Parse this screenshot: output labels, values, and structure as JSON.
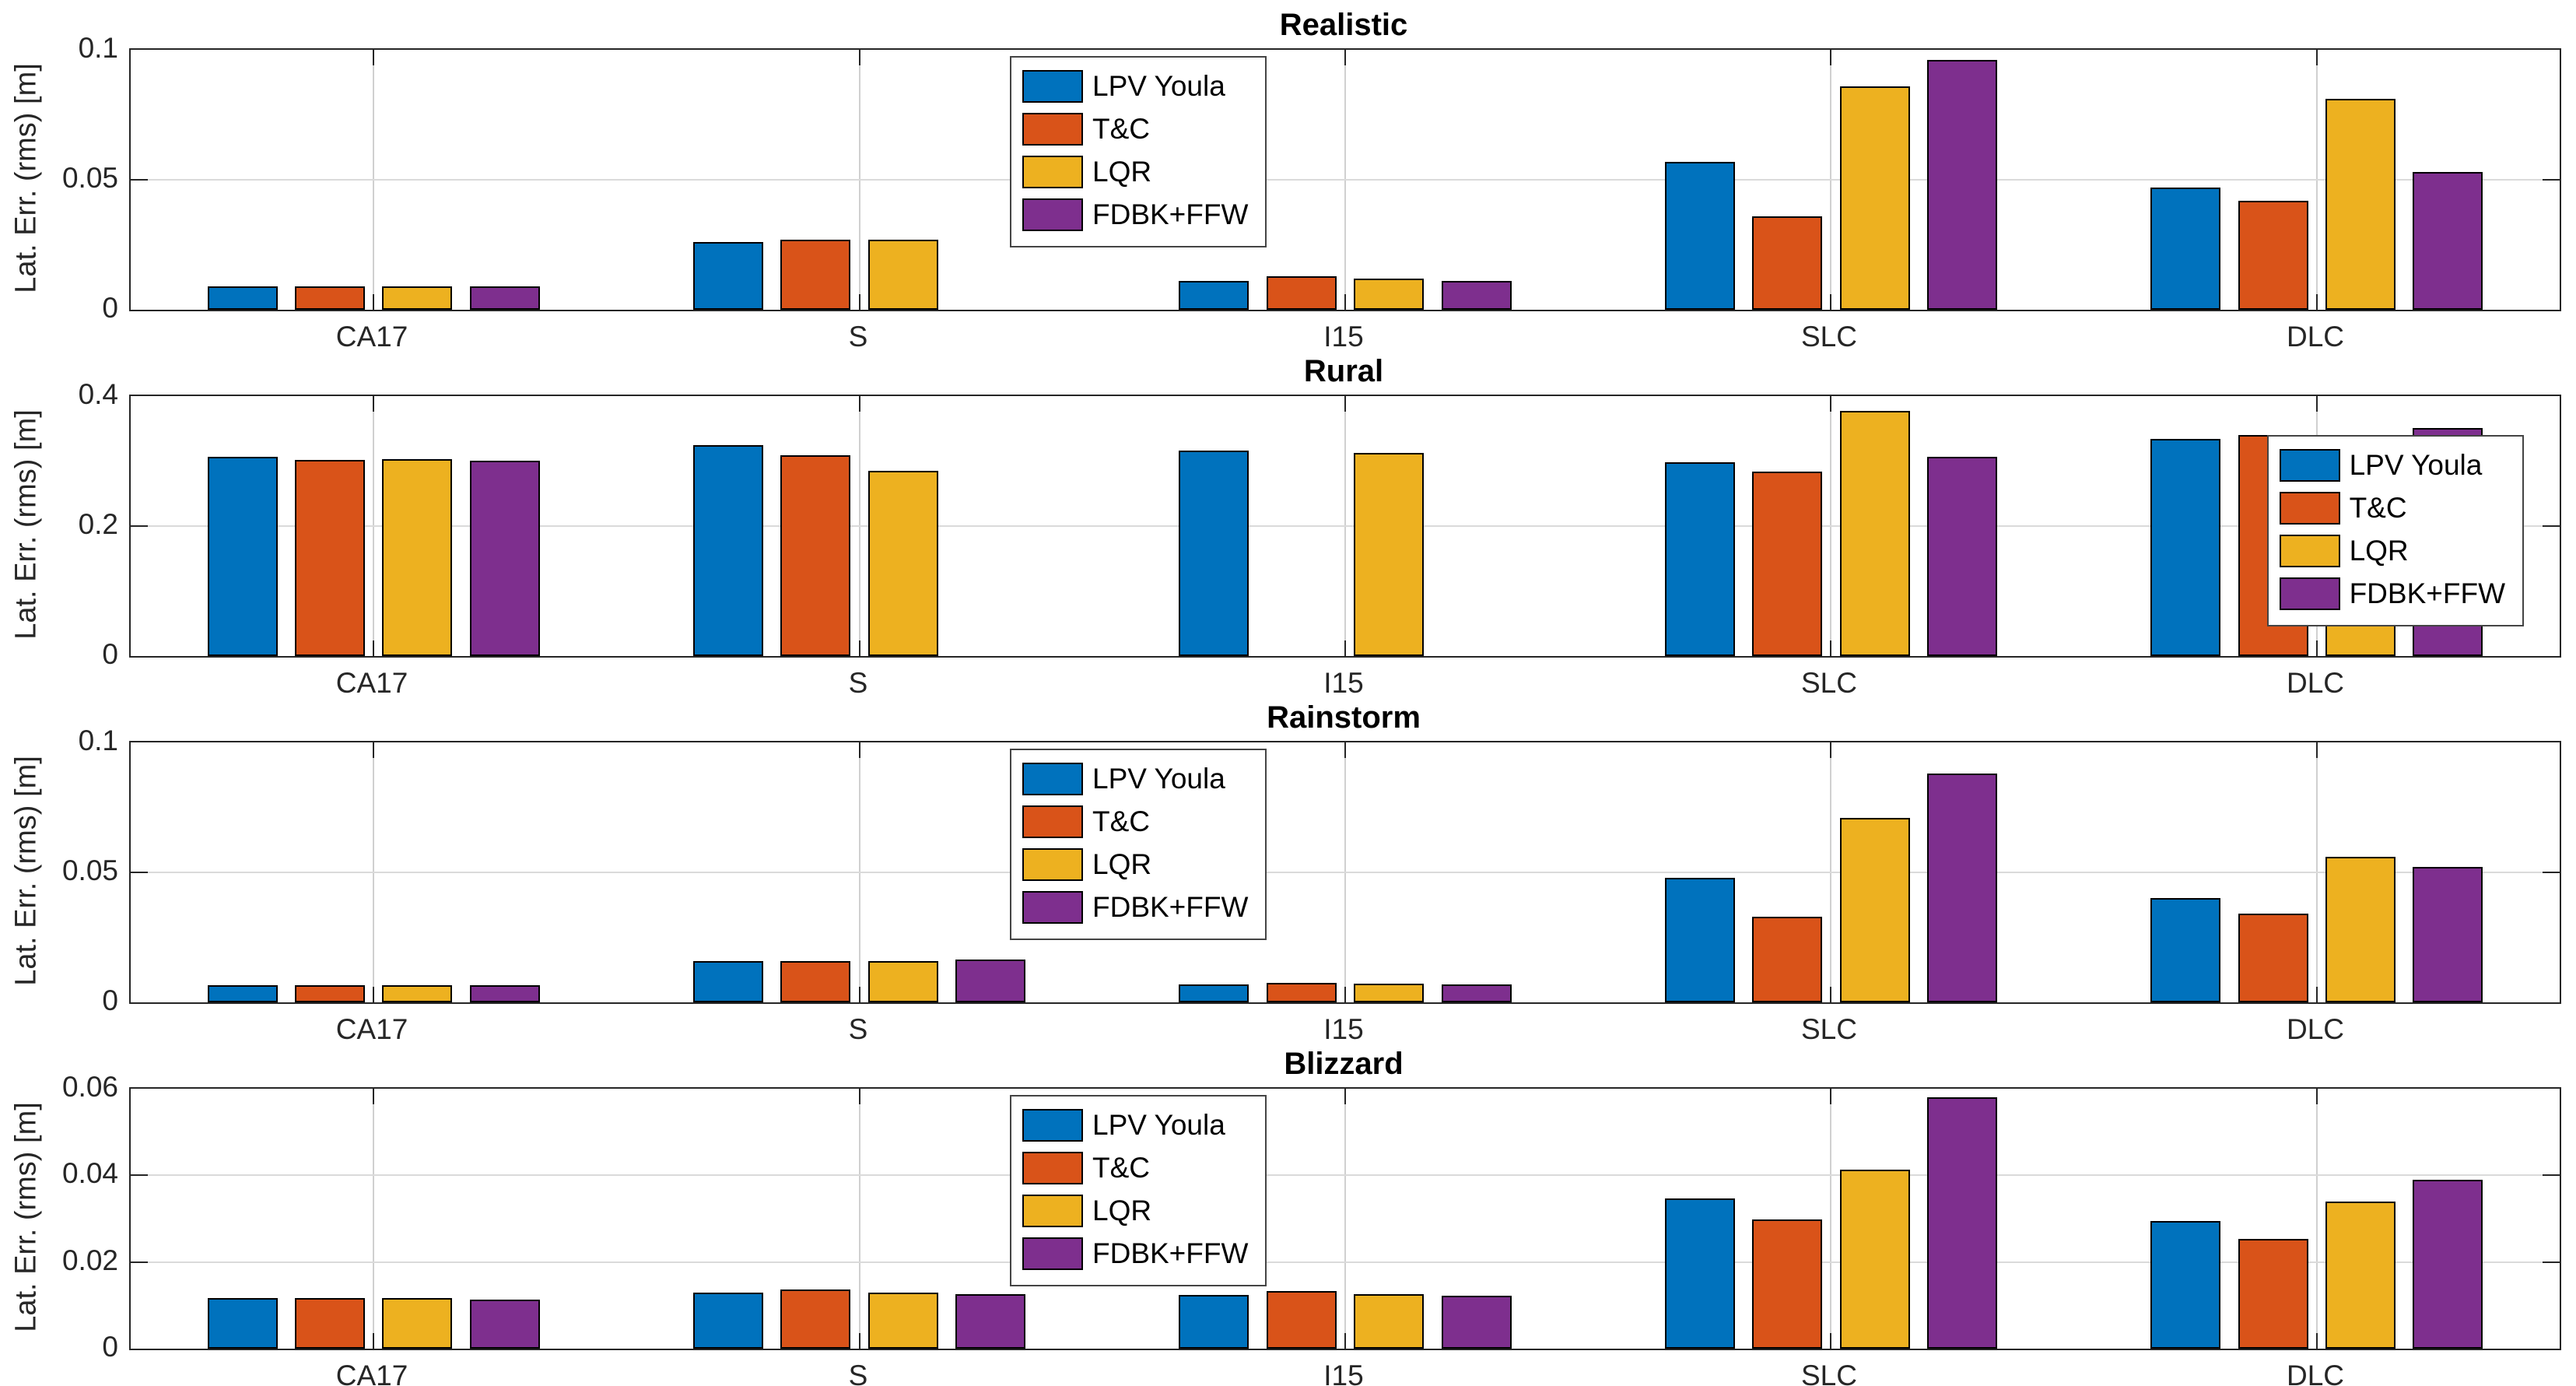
{
  "figure": {
    "ylabel": "Lat. Err. (rms) [m]",
    "categories": [
      "CA17",
      "S",
      "I15",
      "SLC",
      "DLC"
    ],
    "series": [
      {
        "name": "LPV Youla",
        "color": "#0072BD"
      },
      {
        "name": "T&C",
        "color": "#D95319"
      },
      {
        "name": "LQR",
        "color": "#EDB120"
      },
      {
        "name": "FDBK+FFW",
        "color": "#7E2F8E"
      }
    ]
  },
  "chart_data": [
    {
      "type": "bar",
      "title": "Realistic",
      "xlabel": "",
      "ylabel": "Lat. Err. (rms) [m]",
      "categories": [
        "CA17",
        "S",
        "I15",
        "SLC",
        "DLC"
      ],
      "ylim": [
        0,
        0.1
      ],
      "yticks": [
        0,
        0.05,
        0.1
      ],
      "ytick_labels": [
        "0",
        "0.05",
        "0.1"
      ],
      "grid": true,
      "legend_position": "top-center",
      "series": [
        {
          "name": "LPV Youla",
          "values": [
            0.009,
            0.026,
            0.011,
            0.057,
            0.047
          ]
        },
        {
          "name": "T&C",
          "values": [
            0.009,
            0.027,
            0.013,
            0.036,
            0.042
          ]
        },
        {
          "name": "LQR",
          "values": [
            0.009,
            0.027,
            0.012,
            0.086,
            0.081
          ]
        },
        {
          "name": "FDBK+FFW",
          "values": [
            0.009,
            null,
            0.011,
            0.096,
            0.053
          ]
        }
      ]
    },
    {
      "type": "bar",
      "title": "Rural",
      "xlabel": "",
      "ylabel": "Lat. Err. (rms) [m]",
      "categories": [
        "CA17",
        "S",
        "I15",
        "SLC",
        "DLC"
      ],
      "ylim": [
        0,
        0.4
      ],
      "yticks": [
        0,
        0.2,
        0.4
      ],
      "ytick_labels": [
        "0",
        "0.2",
        "0.4"
      ],
      "grid": true,
      "legend_position": "right",
      "series": [
        {
          "name": "LPV Youla",
          "values": [
            0.307,
            0.325,
            0.316,
            0.298,
            0.334
          ]
        },
        {
          "name": "T&C",
          "values": [
            0.302,
            0.309,
            null,
            0.284,
            0.34
          ]
        },
        {
          "name": "LQR",
          "values": [
            0.303,
            0.285,
            0.313,
            0.377,
            0.303
          ]
        },
        {
          "name": "FDBK+FFW",
          "values": [
            0.301,
            null,
            null,
            0.306,
            0.351
          ]
        }
      ]
    },
    {
      "type": "bar",
      "title": "Rainstorm",
      "xlabel": "",
      "ylabel": "Lat. Err. (rms) [m]",
      "categories": [
        "CA17",
        "S",
        "I15",
        "SLC",
        "DLC"
      ],
      "ylim": [
        0,
        0.1
      ],
      "yticks": [
        0,
        0.05,
        0.1
      ],
      "ytick_labels": [
        "0",
        "0.05",
        "0.1"
      ],
      "grid": true,
      "legend_position": "top-center",
      "series": [
        {
          "name": "LPV Youla",
          "values": [
            0.0065,
            0.016,
            0.007,
            0.048,
            0.04
          ]
        },
        {
          "name": "T&C",
          "values": [
            0.0065,
            0.016,
            0.0075,
            0.033,
            0.034
          ]
        },
        {
          "name": "LQR",
          "values": [
            0.0065,
            0.016,
            0.0073,
            0.071,
            0.056
          ]
        },
        {
          "name": "FDBK+FFW",
          "values": [
            0.0065,
            0.0165,
            0.007,
            0.088,
            0.052
          ]
        }
      ]
    },
    {
      "type": "bar",
      "title": "Blizzard",
      "xlabel": "",
      "ylabel": "Lat. Err. (rms) [m]",
      "categories": [
        "CA17",
        "S",
        "I15",
        "SLC",
        "DLC"
      ],
      "ylim": [
        0,
        0.06
      ],
      "yticks": [
        0,
        0.02,
        0.04,
        0.06
      ],
      "ytick_labels": [
        "0",
        "0.02",
        "0.04",
        "0.06"
      ],
      "grid": true,
      "legend_position": "top-center",
      "series": [
        {
          "name": "LPV Youla",
          "values": [
            0.0116,
            0.0129,
            0.0124,
            0.0347,
            0.0294
          ]
        },
        {
          "name": "T&C",
          "values": [
            0.0117,
            0.0137,
            0.0133,
            0.0299,
            0.0254
          ]
        },
        {
          "name": "LQR",
          "values": [
            0.0116,
            0.0129,
            0.0125,
            0.0413,
            0.034
          ]
        },
        {
          "name": "FDBK+FFW",
          "values": [
            0.0113,
            0.0125,
            0.0122,
            0.058,
            0.0389
          ]
        }
      ]
    }
  ]
}
